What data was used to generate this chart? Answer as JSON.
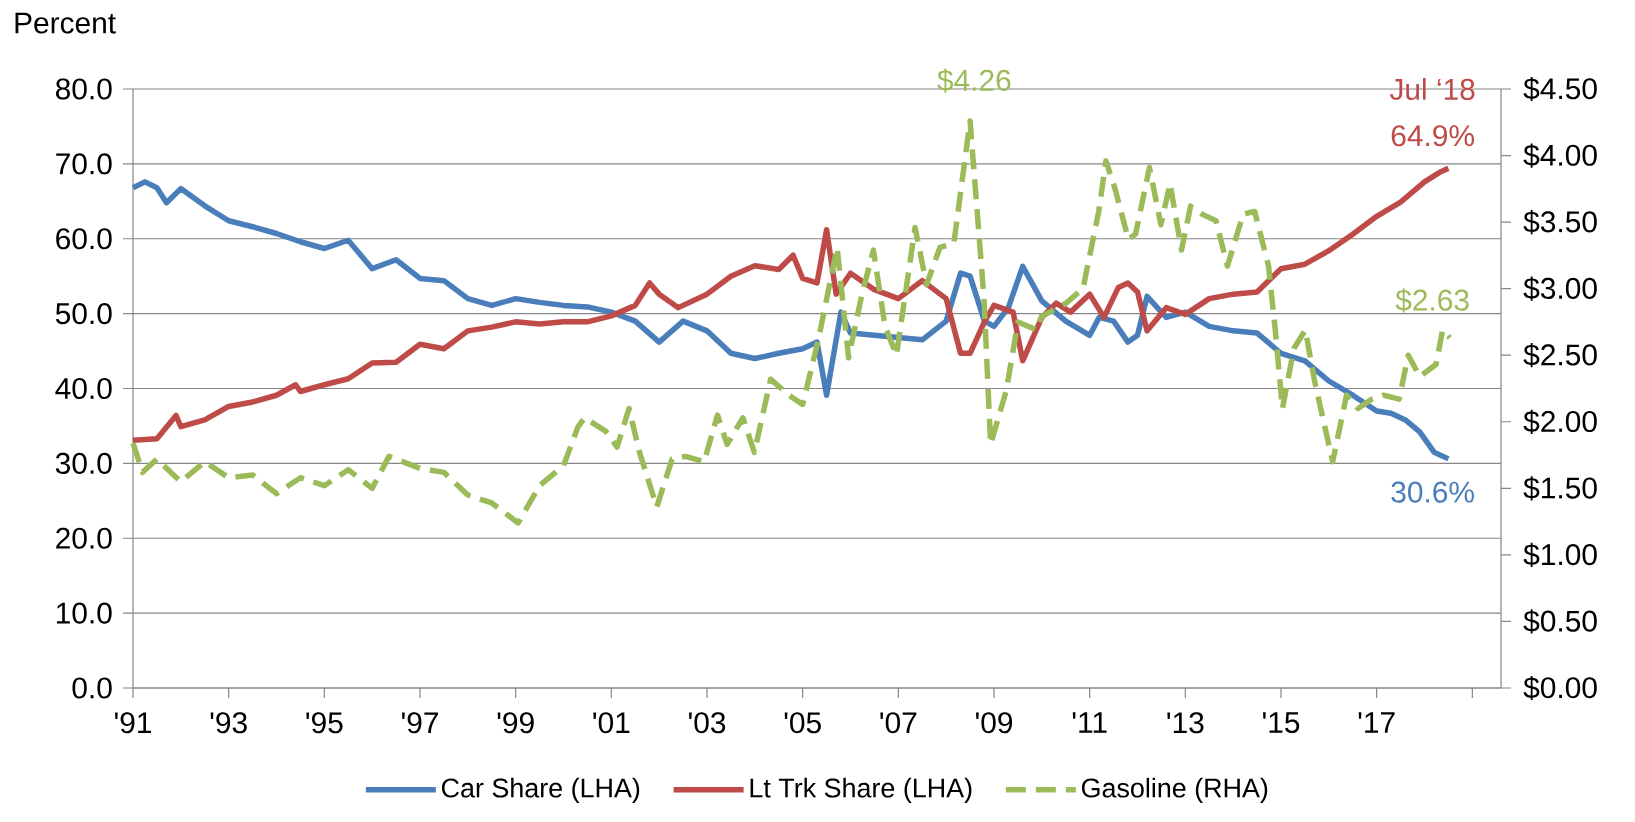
{
  "chart_data": {
    "type": "line",
    "ylabel": "Percent",
    "xlim": [
      1991,
      2019.6
    ],
    "ylim": [
      0,
      80
    ],
    "y2lim": [
      0,
      4.5
    ],
    "xticks": [
      {
        "value": 1991,
        "label": "'91"
      },
      {
        "value": 1993,
        "label": "'93"
      },
      {
        "value": 1995,
        "label": "'95"
      },
      {
        "value": 1997,
        "label": "'97"
      },
      {
        "value": 1999,
        "label": "'99"
      },
      {
        "value": 2001,
        "label": "'01"
      },
      {
        "value": 2003,
        "label": "'03"
      },
      {
        "value": 2005,
        "label": "'05"
      },
      {
        "value": 2007,
        "label": "'07"
      },
      {
        "value": 2009,
        "label": "'09"
      },
      {
        "value": 2011,
        "label": "'11"
      },
      {
        "value": 2013,
        "label": "'13"
      },
      {
        "value": 2015,
        "label": "'15"
      },
      {
        "value": 2017,
        "label": "'17"
      },
      {
        "value": 2019,
        "label": null
      }
    ],
    "yticks": [
      {
        "value": 0,
        "label": "0.0"
      },
      {
        "value": 10,
        "label": "10.0"
      },
      {
        "value": 20,
        "label": "20.0"
      },
      {
        "value": 30,
        "label": "30.0"
      },
      {
        "value": 40,
        "label": "40.0"
      },
      {
        "value": 50,
        "label": "50.0"
      },
      {
        "value": 60,
        "label": "60.0"
      },
      {
        "value": 70,
        "label": "70.0"
      },
      {
        "value": 80,
        "label": "80.0"
      }
    ],
    "y2ticks": [
      {
        "value": 0,
        "label": "$0.00"
      },
      {
        "value": 0.5,
        "label": "$0.50"
      },
      {
        "value": 1,
        "label": "$1.00"
      },
      {
        "value": 1.5,
        "label": "$1.50"
      },
      {
        "value": 2,
        "label": "$2.00"
      },
      {
        "value": 2.5,
        "label": "$2.50"
      },
      {
        "value": 3,
        "label": "$3.00"
      },
      {
        "value": 3.5,
        "label": "$3.50"
      },
      {
        "value": 4,
        "label": "$4.00"
      },
      {
        "value": 4.5,
        "label": "$4.50"
      }
    ],
    "grid": "y",
    "legend": "bottom",
    "series": [
      {
        "name": "Car Share (LHA)",
        "color": "#4a7ebb",
        "line_style": "solid",
        "x": [
          1991.0,
          1991.25,
          1991.5,
          1991.7,
          1992.0,
          1992.5,
          1993.0,
          1993.5,
          1994.0,
          1994.5,
          1995.0,
          1995.5,
          1996.0,
          1996.5,
          1997.0,
          1997.5,
          1998.0,
          1998.5,
          1999.0,
          1999.5,
          2000.0,
          2000.5,
          2001.0,
          2001.5,
          2002.0,
          2002.5,
          2003.0,
          2003.5,
          2004.0,
          2004.5,
          2005.0,
          2005.3,
          2005.5,
          2005.8,
          2006.0,
          2006.5,
          2007.0,
          2007.5,
          2008.0,
          2008.3,
          2008.5,
          2008.8,
          2009.0,
          2009.3,
          2009.6,
          2010.0,
          2010.5,
          2011.0,
          2011.2,
          2011.5,
          2011.8,
          2012.0,
          2012.2,
          2012.6,
          2013.0,
          2013.5,
          2014.0,
          2014.5,
          2015.0,
          2015.5,
          2016.0,
          2016.5,
          2017.0,
          2017.3,
          2017.6,
          2017.9,
          2018.2,
          2018.5
        ],
        "values": [
          66.8,
          67.6,
          66.8,
          64.8,
          66.7,
          64.4,
          62.4,
          61.6,
          60.7,
          59.6,
          58.7,
          59.8,
          56.0,
          57.2,
          54.7,
          54.4,
          52.0,
          51.1,
          52.0,
          51.5,
          51.1,
          50.9,
          50.2,
          49.0,
          46.2,
          49.0,
          47.7,
          44.7,
          44.0,
          44.7,
          45.3,
          46.2,
          39.1,
          50.2,
          47.4,
          47.1,
          46.8,
          46.5,
          49.0,
          55.4,
          55.0,
          49.0,
          48.3,
          50.8,
          56.3,
          51.7,
          49.0,
          47.1,
          49.5,
          49.0,
          46.2,
          47.1,
          52.3,
          49.5,
          50.2,
          48.3,
          47.7,
          47.4,
          44.7,
          43.7,
          41.0,
          39.1,
          37.0,
          36.7,
          35.8,
          34.2,
          31.5,
          30.6
        ]
      },
      {
        "name": "Lt Trk Share (LHA)",
        "color": "#be4b48",
        "line_style": "solid",
        "x": [
          1991.0,
          1991.5,
          1991.9,
          1992.0,
          1992.5,
          1993.0,
          1993.5,
          1994.0,
          1994.4,
          1994.5,
          1995.0,
          1995.5,
          1996.0,
          1996.5,
          1997.0,
          1997.5,
          1998.0,
          1998.5,
          1999.0,
          1999.5,
          2000.0,
          2000.5,
          2001.0,
          2001.5,
          2001.8,
          2002.0,
          2002.4,
          2003.0,
          2003.5,
          2004.0,
          2004.5,
          2004.8,
          2005.0,
          2005.3,
          2005.5,
          2005.7,
          2006.0,
          2006.5,
          2007.0,
          2007.5,
          2008.0,
          2008.3,
          2008.5,
          2008.8,
          2009.0,
          2009.4,
          2009.6,
          2010.0,
          2010.3,
          2010.6,
          2011.0,
          2011.3,
          2011.6,
          2011.8,
          2012.0,
          2012.2,
          2012.6,
          2013.0,
          2013.5,
          2014.0,
          2014.5,
          2015.0,
          2015.5,
          2016.0,
          2016.5,
          2017.0,
          2017.5,
          2018.0,
          2018.3,
          2018.5
        ],
        "values": [
          33.1,
          33.3,
          36.4,
          34.9,
          35.8,
          37.6,
          38.2,
          39.1,
          40.5,
          39.6,
          40.5,
          41.3,
          43.4,
          43.5,
          45.9,
          45.3,
          47.7,
          48.2,
          48.9,
          48.6,
          48.9,
          48.9,
          49.7,
          51.1,
          54.1,
          52.6,
          50.8,
          52.6,
          55.0,
          56.4,
          55.9,
          57.8,
          54.7,
          54.1,
          61.2,
          52.6,
          55.4,
          53.2,
          52.0,
          54.4,
          52.0,
          44.7,
          44.7,
          48.9,
          51.1,
          50.2,
          43.7,
          49.5,
          51.4,
          50.2,
          52.6,
          49.5,
          53.5,
          54.1,
          52.9,
          47.7,
          50.8,
          49.9,
          52.0,
          52.6,
          52.9,
          56.0,
          56.6,
          58.4,
          60.6,
          63.0,
          64.9,
          67.6,
          68.8,
          69.4
        ]
      },
      {
        "name": "Gasoline (RHA)",
        "color": "#9bbb59",
        "line_style": "dashed",
        "axis": "y2",
        "x": [
          1991.0,
          1991.2,
          1991.5,
          1992.0,
          1992.5,
          1993.0,
          1993.5,
          1994.0,
          1994.5,
          1995.0,
          1995.5,
          1996.0,
          1996.35,
          1997.0,
          1997.5,
          1998.0,
          1998.5,
          1999.05,
          1999.5,
          2000.0,
          2000.3,
          2000.44,
          2000.88,
          2001.12,
          2001.37,
          2001.59,
          2001.95,
          2002.27,
          2002.55,
          2002.94,
          2003.22,
          2003.42,
          2003.75,
          2003.99,
          2004.33,
          2004.71,
          2005.0,
          2005.33,
          2005.72,
          2005.96,
          2006.24,
          2006.48,
          2006.72,
          2006.96,
          2007.35,
          2007.59,
          2007.87,
          2008.16,
          2008.5,
          2008.79,
          2008.93,
          2009.26,
          2009.5,
          2009.89,
          2009.99,
          2010.5,
          2010.86,
          2011.19,
          2011.34,
          2011.53,
          2011.81,
          2011.96,
          2012.25,
          2012.49,
          2012.68,
          2012.92,
          2013.11,
          2013.35,
          2013.64,
          2013.88,
          2014.21,
          2014.45,
          2014.74,
          2014.88,
          2015.03,
          2015.27,
          2015.51,
          2015.7,
          2016.08,
          2016.37,
          2016.61,
          2016.9,
          2017.14,
          2017.47,
          2017.66,
          2017.9,
          2018.24,
          2018.38,
          2018.53
        ],
        "values": [
          1.84,
          1.62,
          1.72,
          1.55,
          1.7,
          1.58,
          1.6,
          1.46,
          1.58,
          1.52,
          1.64,
          1.5,
          1.74,
          1.65,
          1.62,
          1.45,
          1.39,
          1.24,
          1.52,
          1.67,
          1.96,
          2.03,
          1.93,
          1.81,
          2.1,
          1.77,
          1.36,
          1.72,
          1.74,
          1.7,
          2.05,
          1.83,
          2.03,
          1.77,
          2.32,
          2.2,
          2.13,
          2.62,
          3.31,
          2.48,
          2.96,
          3.29,
          2.72,
          2.5,
          3.46,
          3.03,
          3.31,
          3.34,
          4.26,
          2.93,
          1.83,
          2.24,
          2.75,
          2.69,
          2.79,
          2.89,
          3.0,
          3.58,
          3.96,
          3.75,
          3.37,
          3.41,
          3.91,
          3.48,
          3.79,
          3.29,
          3.62,
          3.56,
          3.51,
          3.17,
          3.56,
          3.58,
          3.17,
          2.69,
          2.1,
          2.55,
          2.69,
          2.31,
          1.7,
          2.2,
          2.1,
          2.17,
          2.2,
          2.17,
          2.5,
          2.34,
          2.43,
          2.69,
          2.63
        ]
      }
    ],
    "annotations": [
      "$4.26",
      "Jul ‘18",
      "64.9%",
      "$2.63",
      "30.6%"
    ]
  }
}
